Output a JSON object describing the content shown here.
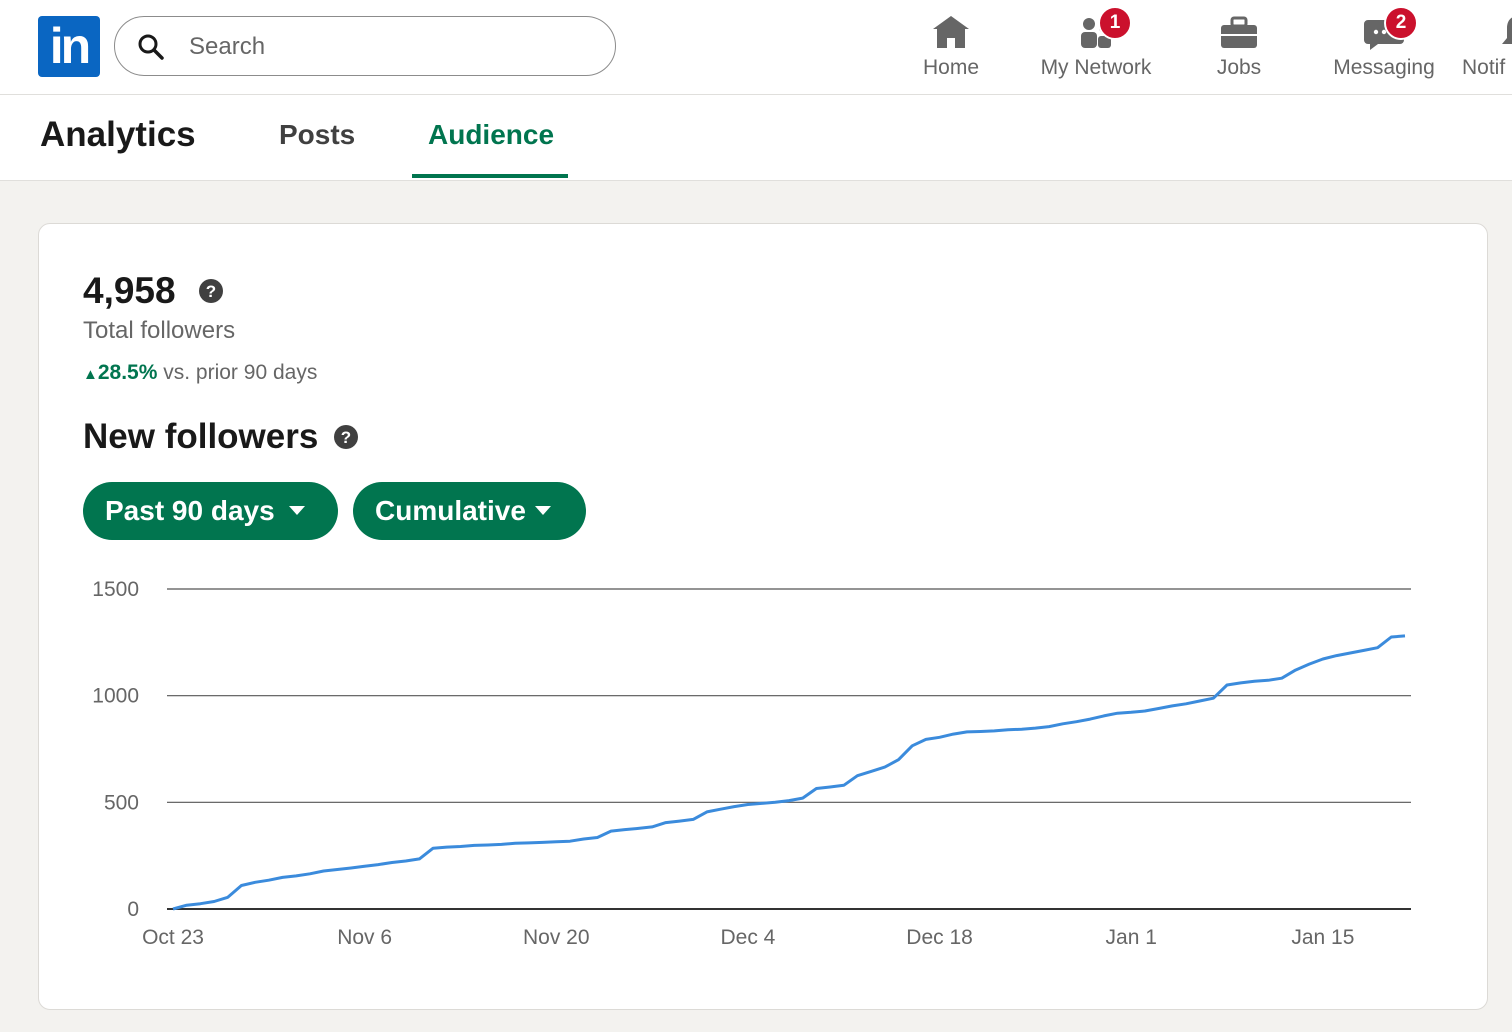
{
  "header": {
    "logo_text": "in",
    "search_placeholder": "Search",
    "nav": [
      {
        "label": "Home",
        "icon": "home-icon"
      },
      {
        "label": "My Network",
        "icon": "people-icon",
        "badge": "1"
      },
      {
        "label": "Jobs",
        "icon": "briefcase-icon"
      },
      {
        "label": "Messaging",
        "icon": "chat-icon",
        "badge": "2"
      },
      {
        "label": "Notif",
        "icon": "bell-icon"
      }
    ]
  },
  "subnav": {
    "title": "Analytics",
    "tabs": [
      {
        "label": "Posts",
        "active": false
      },
      {
        "label": "Audience",
        "active": true
      }
    ]
  },
  "summary": {
    "total": "4,958",
    "total_label": "Total followers",
    "change_pct": "28.5%",
    "change_text": "vs. prior 90 days"
  },
  "new_followers": {
    "title": "New followers",
    "range_label": "Past 90 days",
    "mode_label": "Cumulative"
  },
  "colors": {
    "brand": "#0a66c2",
    "accent_green": "#01754f",
    "line": "#3b8bdc",
    "badge": "#cb112d"
  },
  "chart_data": {
    "type": "line",
    "xlabel": "",
    "ylabel": "",
    "ylim": [
      0,
      1500
    ],
    "yticks": [
      "0",
      "500",
      "1000",
      "1500"
    ],
    "xticks": [
      "Oct 23",
      "Nov 6",
      "Nov 20",
      "Dec 4",
      "Dec 18",
      "Jan 1",
      "Jan 15"
    ],
    "grid": true,
    "series": [
      {
        "x_start": "Oct 23",
        "values": [
          0,
          18,
          25,
          35,
          55,
          110,
          125,
          135,
          148,
          155,
          165,
          178,
          185,
          192,
          200,
          208,
          218,
          225,
          235,
          285,
          290,
          293,
          298,
          300,
          303,
          308,
          310,
          312,
          315,
          318,
          328,
          335,
          365,
          372,
          378,
          385,
          405,
          412,
          420,
          455,
          468,
          480,
          490,
          495,
          500,
          508,
          520,
          565,
          572,
          580,
          625,
          645,
          665,
          700,
          765,
          795,
          805,
          820,
          830,
          832,
          835,
          840,
          843,
          848,
          855,
          868,
          878,
          890,
          905,
          918,
          922,
          928,
          940,
          952,
          962,
          975,
          988,
          1050,
          1060,
          1068,
          1072,
          1082,
          1120,
          1148,
          1172,
          1188,
          1200,
          1212,
          1225,
          1275,
          1280
        ]
      }
    ]
  }
}
